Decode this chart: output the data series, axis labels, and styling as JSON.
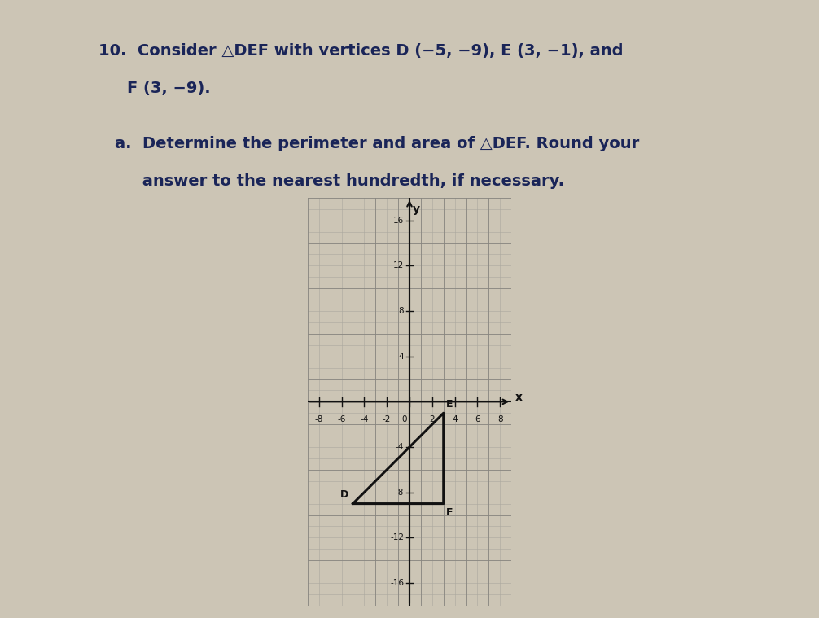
{
  "title_line1": "10.  Consider △DEF with vertices D (−5, −9), E (3, −1), and",
  "title_line2": "F (3, −9).",
  "subtitle_a": "a.  Determine the perimeter and area of △DEF. Round your",
  "subtitle_b": "     answer to the nearest hundredth, if necessary.",
  "vertices": {
    "D": [
      -5,
      -9
    ],
    "E": [
      3,
      -1
    ],
    "F": [
      3,
      -9
    ]
  },
  "xmin": -9,
  "xmax": 9,
  "ymin": -18,
  "ymax": 18,
  "x_tick_step": 2,
  "y_tick_step": 4,
  "x_label_step": 2,
  "y_label_step": 4,
  "bg_color": "#ccc5b5",
  "paper_color": "#ddd8cc",
  "graph_bg": "#e8e4da",
  "grid_minor_color": "#aaa89e",
  "grid_major_color": "#888680",
  "axis_color": "#111111",
  "triangle_color": "#111111",
  "label_color": "#111111",
  "font_color_title": "#1a2558",
  "font_size_title": 14,
  "font_size_sub": 14
}
